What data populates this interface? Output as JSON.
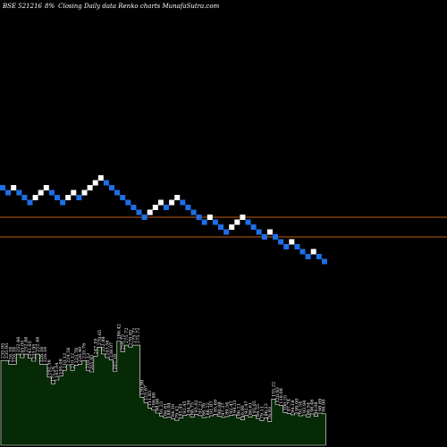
{
  "header": {
    "symbol": "BSE 521216",
    "percent": "8%",
    "subtitle": "Closing Daily data  Renko  charts MunafaSutra.com"
  },
  "colors": {
    "up_brick": "#ffffff",
    "down_brick": "#1e6fe6",
    "ref_line": "#c06010",
    "volume_fill": "#062a06",
    "volume_stroke": "#ffffff",
    "background": "#000000"
  },
  "chart_data": {
    "type": "renko",
    "brick_size_label": "8%",
    "bricks": [
      {
        "d": "down",
        "level": 8
      },
      {
        "d": "down",
        "level": 7
      },
      {
        "d": "up",
        "level": 8
      },
      {
        "d": "down",
        "level": 7
      },
      {
        "d": "down",
        "level": 6
      },
      {
        "d": "down",
        "level": 5
      },
      {
        "d": "up",
        "level": 6
      },
      {
        "d": "up",
        "level": 7
      },
      {
        "d": "up",
        "level": 8
      },
      {
        "d": "down",
        "level": 7
      },
      {
        "d": "down",
        "level": 6
      },
      {
        "d": "down",
        "level": 5
      },
      {
        "d": "up",
        "level": 6
      },
      {
        "d": "up",
        "level": 7
      },
      {
        "d": "down",
        "level": 6
      },
      {
        "d": "up",
        "level": 7
      },
      {
        "d": "up",
        "level": 8
      },
      {
        "d": "up",
        "level": 9
      },
      {
        "d": "up",
        "level": 10
      },
      {
        "d": "down",
        "level": 9
      },
      {
        "d": "down",
        "level": 8
      },
      {
        "d": "down",
        "level": 7
      },
      {
        "d": "down",
        "level": 6
      },
      {
        "d": "down",
        "level": 5
      },
      {
        "d": "down",
        "level": 4
      },
      {
        "d": "down",
        "level": 3
      },
      {
        "d": "down",
        "level": 2
      },
      {
        "d": "up",
        "level": 3
      },
      {
        "d": "up",
        "level": 4
      },
      {
        "d": "up",
        "level": 5
      },
      {
        "d": "down",
        "level": 4
      },
      {
        "d": "up",
        "level": 5
      },
      {
        "d": "up",
        "level": 6
      },
      {
        "d": "down",
        "level": 5
      },
      {
        "d": "down",
        "level": 4
      },
      {
        "d": "down",
        "level": 3
      },
      {
        "d": "down",
        "level": 2
      },
      {
        "d": "down",
        "level": 1
      },
      {
        "d": "up",
        "level": 2
      },
      {
        "d": "down",
        "level": 1
      },
      {
        "d": "down",
        "level": 0
      },
      {
        "d": "down",
        "level": -1
      },
      {
        "d": "up",
        "level": 0
      },
      {
        "d": "up",
        "level": 1
      },
      {
        "d": "up",
        "level": 2
      },
      {
        "d": "down",
        "level": 1
      },
      {
        "d": "down",
        "level": 0
      },
      {
        "d": "down",
        "level": -1
      },
      {
        "d": "down",
        "level": -2
      },
      {
        "d": "up",
        "level": -1
      },
      {
        "d": "down",
        "level": -2
      },
      {
        "d": "down",
        "level": -3
      },
      {
        "d": "down",
        "level": -4
      },
      {
        "d": "up",
        "level": -3
      },
      {
        "d": "down",
        "level": -4
      },
      {
        "d": "down",
        "level": -5
      },
      {
        "d": "down",
        "level": -6
      },
      {
        "d": "up",
        "level": -5
      },
      {
        "d": "down",
        "level": -6
      },
      {
        "d": "down",
        "level": -7
      }
    ],
    "reference_levels": [
      2,
      -2
    ],
    "volume_labels": [
      "235.95",
      "235.95",
      "226.18",
      "226.18",
      "252.46",
      "243.05",
      "252.46",
      "241.65",
      "233.95",
      "252.46",
      "226.18",
      "226.18",
      "192.56",
      "175.26",
      "185.04",
      "195.08",
      "210.12",
      "224.56",
      "210.12",
      "223.78",
      "226.40",
      "235.76",
      "210.12",
      "205.95",
      "247.19",
      "270.65",
      "252.88",
      "243.56",
      "238.07",
      "207.19",
      "286.42",
      "258.75",
      "275.72",
      "270.85",
      "275.72",
      "275.72",
      "139.99",
      "125.67",
      "111.83",
      "106.89",
      "98.66",
      "91.23",
      "86.81",
      "88.04",
      "84.10",
      "79.42",
      "85.43",
      "92.45",
      "94.36",
      "88.75",
      "95.02",
      "92.21",
      "86.76",
      "88.22",
      "91.97",
      "95.69",
      "90.08",
      "87.37",
      "89.56",
      "92.47",
      "94.33",
      "86.21",
      "80.90",
      "92.47",
      "88.61",
      "93.05",
      "84.55",
      "79.11",
      "86.12",
      "76.93",
      "135.22",
      "120.93",
      "118.08",
      "100.25",
      "97.74",
      "94.18",
      "99.00",
      "91.54",
      "93.94",
      "88.54",
      "96.46",
      "90.08",
      "98.69",
      "96.90"
    ]
  }
}
